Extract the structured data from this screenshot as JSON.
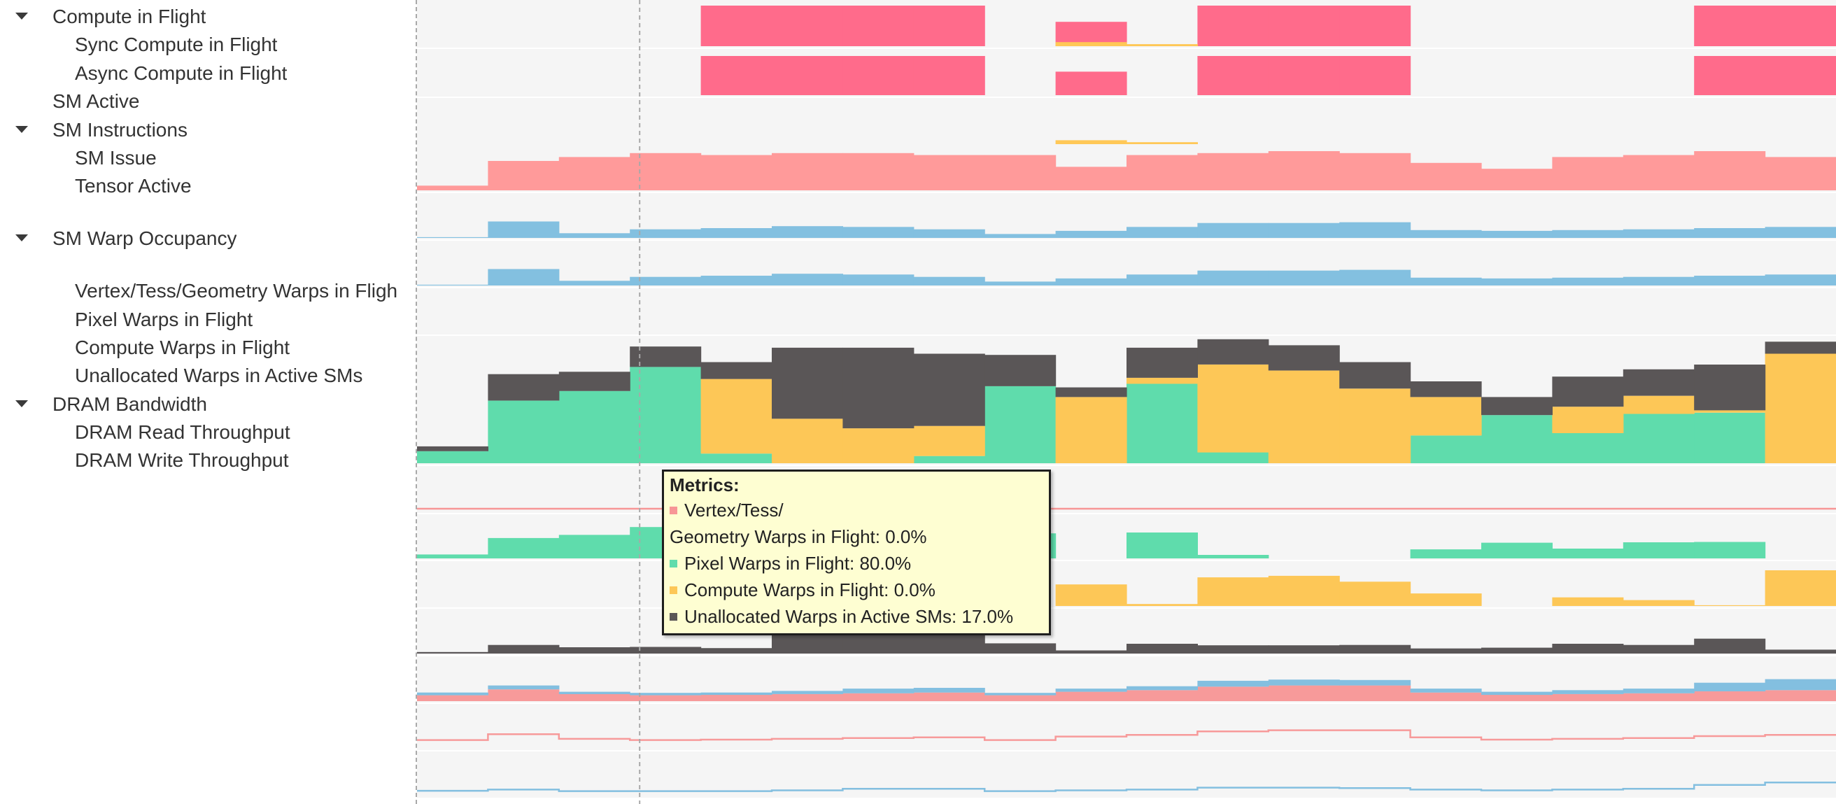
{
  "colors": {
    "compute": "#ff6b8b",
    "async": "#ffc857",
    "sm_active": "#ff9a9a",
    "sm_instr": "#83c0e0",
    "pixel": "#5fdcac",
    "vertex": "#f79696",
    "compute_warp": "#fdc757",
    "unalloc": "#5a5657",
    "dram_read": "#f79a9a",
    "dram_write": "#83bfe0",
    "track_bg": "#f5f5f5",
    "track_bg_alt": "#ffffff"
  },
  "rows": [
    {
      "id": "compute-in-flight",
      "label": "Compute in Flight",
      "level": 0,
      "expandable": true,
      "icon": "collapse-caret-icon"
    },
    {
      "id": "sync-compute-in-flight",
      "label": "Sync Compute in Flight",
      "level": 1,
      "expandable": false
    },
    {
      "id": "async-compute-in-flight",
      "label": "Async Compute in Flight",
      "level": 1,
      "expandable": false
    },
    {
      "id": "sm-active",
      "label": "SM Active",
      "level": 0,
      "expandable": false
    },
    {
      "id": "sm-instructions",
      "label": "SM Instructions",
      "level": 0,
      "expandable": true,
      "icon": "collapse-caret-icon"
    },
    {
      "id": "sm-issue",
      "label": "SM Issue",
      "level": 1,
      "expandable": false
    },
    {
      "id": "tensor-active",
      "label": "Tensor Active",
      "level": 1,
      "expandable": false
    },
    {
      "id": "sm-warp-occupancy",
      "label": "SM Warp Occupancy",
      "level": 0,
      "expandable": true,
      "icon": "collapse-caret-icon"
    },
    {
      "id": "vertex-tess-geometry-warps",
      "label": "Vertex/Tess/Geometry Warps in Fligh",
      "level": 1,
      "expandable": false
    },
    {
      "id": "pixel-warps-in-flight",
      "label": "Pixel Warps in Flight",
      "level": 1,
      "expandable": false
    },
    {
      "id": "compute-warps-in-flight",
      "label": "Compute Warps in Flight",
      "level": 1,
      "expandable": false
    },
    {
      "id": "unallocated-warps",
      "label": "Unallocated Warps in Active SMs",
      "level": 1,
      "expandable": false
    },
    {
      "id": "dram-bandwidth",
      "label": "DRAM Bandwidth",
      "level": 0,
      "expandable": true,
      "icon": "collapse-caret-icon"
    },
    {
      "id": "dram-read-throughput",
      "label": "DRAM Read Throughput",
      "level": 1,
      "expandable": false
    },
    {
      "id": "dram-write-throughput",
      "label": "DRAM Write Throughput",
      "level": 1,
      "expandable": false
    }
  ],
  "tooltip": {
    "title": "Metrics:",
    "lines": [
      {
        "text": "Vertex/Tess/",
        "swatch": "vertex"
      },
      {
        "text": "Geometry Warps in Flight: 0.0%",
        "swatch": null
      },
      {
        "text": "Pixel Warps in Flight: 80.0%",
        "swatch": "pixel"
      },
      {
        "text": "Compute Warps in Flight: 0.0%",
        "swatch": "compute_warp"
      },
      {
        "text": "Unallocated Warps in Active SMs: 17.0%",
        "swatch": "unalloc"
      }
    ]
  },
  "series": {
    "sync_compute": [
      0,
      0,
      0,
      0,
      100,
      100,
      100,
      100,
      0,
      60,
      0,
      100,
      100,
      100,
      0,
      0,
      0,
      0,
      100,
      100
    ],
    "async_compute": [
      0,
      0,
      0,
      0,
      0,
      0,
      0,
      0,
      0,
      10,
      5,
      0,
      0,
      0,
      0,
      0,
      0,
      0,
      0,
      0
    ],
    "sm_active": [
      12,
      75,
      85,
      95,
      90,
      95,
      95,
      90,
      90,
      60,
      90,
      95,
      100,
      95,
      70,
      55,
      85,
      90,
      100,
      85
    ],
    "sm_issue": [
      2,
      42,
      12,
      22,
      25,
      30,
      28,
      22,
      10,
      18,
      28,
      38,
      38,
      40,
      20,
      18,
      20,
      22,
      25,
      28
    ],
    "tensor_active": [
      0,
      0,
      0,
      0,
      0,
      0,
      0,
      0,
      0,
      0,
      0,
      0,
      0,
      0,
      0,
      0,
      0,
      0,
      0,
      0
    ],
    "pixel_warps": [
      10,
      52,
      60,
      80,
      8,
      0,
      0,
      6,
      64,
      0,
      66,
      9,
      0,
      0,
      23,
      40,
      25,
      41,
      42,
      0
    ],
    "vertex_warps": [
      0,
      0,
      0,
      0,
      0,
      0,
      0,
      0,
      0,
      0,
      0,
      0,
      0,
      0,
      0,
      0,
      0,
      0,
      0,
      0
    ],
    "compute_warps": [
      0,
      0,
      0,
      0,
      62,
      37,
      29,
      25,
      0,
      55,
      5,
      73,
      77,
      62,
      32,
      0,
      22,
      15,
      2,
      91
    ],
    "unalloc_warps": [
      4,
      22,
      16,
      17,
      14,
      59,
      67,
      60,
      26,
      8,
      25,
      21,
      21,
      22,
      13,
      15,
      25,
      22,
      38,
      10
    ],
    "dram_read": [
      15,
      30,
      18,
      15,
      16,
      18,
      20,
      22,
      15,
      24,
      28,
      37,
      40,
      40,
      22,
      16,
      18,
      20,
      25,
      28
    ],
    "dram_write": [
      7,
      10,
      6,
      6,
      6,
      8,
      12,
      12,
      6,
      8,
      10,
      15,
      15,
      14,
      10,
      8,
      10,
      12,
      22,
      28
    ]
  },
  "cursor": {
    "bin": 3
  }
}
